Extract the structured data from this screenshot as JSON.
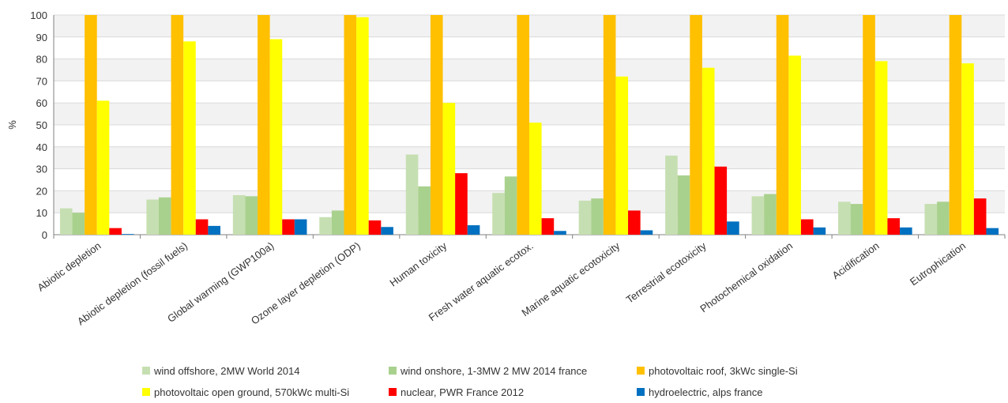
{
  "chart_data": {
    "type": "bar",
    "title": "",
    "xlabel": "",
    "ylabel": "%",
    "ylim": [
      0,
      100
    ],
    "yticks": [
      "0",
      "10",
      "20",
      "30",
      "40",
      "50",
      "60",
      "70",
      "80",
      "90",
      "100"
    ],
    "grid": true,
    "legend_position": "bottom",
    "categories": [
      "Abiotic depletion",
      "Abiotic depletion (fossil fuels)",
      "Global warming (GWP100a)",
      "Ozone layer depletion (ODP)",
      "Human toxicity",
      "Fresh water aquatic ecotox.",
      "Marine aquatic ecotoxicity",
      "Terrestrial ecotoxicity",
      "Photochemical oxidation",
      "Acidification",
      "Eutrophication"
    ],
    "series": [
      {
        "name": "wind offshore, 2MW  World 2014",
        "color": "#c6dfb2",
        "values": [
          12,
          16,
          18,
          8,
          36.5,
          19,
          15.5,
          36,
          17.5,
          15,
          14
        ]
      },
      {
        "name": "wind onshore, 1-3MW 2 MW 2014 france",
        "color": "#a9d18e",
        "values": [
          10,
          17,
          17.5,
          11,
          22,
          26.5,
          16.5,
          27,
          18.5,
          14,
          15
        ]
      },
      {
        "name": "photovoltaic roof, 3kWc single-Si",
        "color": "#ffc000",
        "values": [
          100,
          100,
          100,
          100,
          100,
          100,
          100,
          100,
          100,
          100,
          100
        ]
      },
      {
        "name": "photovoltaic open ground, 570kWc multi-Si",
        "color": "#ffff00",
        "values": [
          61,
          88,
          89,
          99,
          60,
          51,
          72,
          76,
          81.5,
          79,
          78
        ]
      },
      {
        "name": "nuclear, PWR France 2012",
        "color": "#ff0000",
        "values": [
          3,
          7,
          7,
          6.5,
          28,
          7.5,
          11,
          31,
          7,
          7.5,
          16.5
        ]
      },
      {
        "name": "hydroelectric, alps france",
        "color": "#0070c0",
        "values": [
          0.3,
          4,
          7,
          3.5,
          4.3,
          1.7,
          2,
          6,
          3.3,
          3.3,
          3
        ]
      }
    ]
  }
}
